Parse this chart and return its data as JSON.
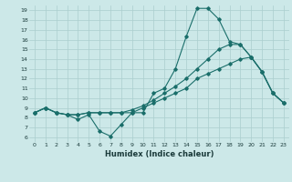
{
  "xlabel": "Humidex (Indice chaleur)",
  "ylabel": "",
  "bg_color": "#cce8e8",
  "line_color": "#1a6e6a",
  "grid_color": "#aacece",
  "xlim": [
    -0.5,
    23.5
  ],
  "ylim": [
    5.5,
    19.5
  ],
  "xticks": [
    0,
    1,
    2,
    3,
    4,
    5,
    6,
    7,
    8,
    9,
    10,
    11,
    12,
    13,
    14,
    15,
    16,
    17,
    18,
    19,
    20,
    21,
    22,
    23
  ],
  "yticks": [
    6,
    7,
    8,
    9,
    10,
    11,
    12,
    13,
    14,
    15,
    16,
    17,
    18,
    19
  ],
  "series": [
    {
      "x": [
        0,
        1,
        2,
        3,
        4,
        5,
        6,
        7,
        8,
        9,
        10,
        11,
        12,
        13,
        14,
        15,
        16,
        17,
        18,
        19,
        20,
        21,
        22,
        23
      ],
      "y": [
        8.5,
        9.0,
        8.5,
        8.3,
        7.8,
        8.3,
        6.6,
        6.1,
        7.3,
        8.5,
        8.5,
        10.5,
        11.0,
        13.0,
        16.3,
        19.2,
        19.2,
        18.1,
        15.8,
        15.5,
        14.2,
        12.7,
        10.5,
        9.5
      ]
    },
    {
      "x": [
        0,
        1,
        2,
        3,
        4,
        5,
        6,
        7,
        8,
        9,
        10,
        11,
        12,
        13,
        14,
        15,
        16,
        17,
        18,
        19,
        20,
        21,
        22,
        23
      ],
      "y": [
        8.5,
        9.0,
        8.5,
        8.3,
        8.3,
        8.5,
        8.5,
        8.5,
        8.5,
        8.8,
        9.2,
        9.8,
        10.5,
        11.2,
        12.0,
        13.0,
        14.0,
        15.0,
        15.5,
        15.5,
        14.2,
        12.7,
        10.5,
        9.5
      ]
    },
    {
      "x": [
        0,
        1,
        2,
        3,
        4,
        5,
        6,
        7,
        8,
        9,
        10,
        11,
        12,
        13,
        14,
        15,
        16,
        17,
        18,
        19,
        20,
        21,
        22,
        23
      ],
      "y": [
        8.5,
        9.0,
        8.5,
        8.3,
        8.3,
        8.5,
        8.5,
        8.5,
        8.5,
        8.5,
        9.0,
        9.5,
        10.0,
        10.5,
        11.0,
        12.0,
        12.5,
        13.0,
        13.5,
        14.0,
        14.2,
        12.7,
        10.5,
        9.5
      ]
    }
  ]
}
